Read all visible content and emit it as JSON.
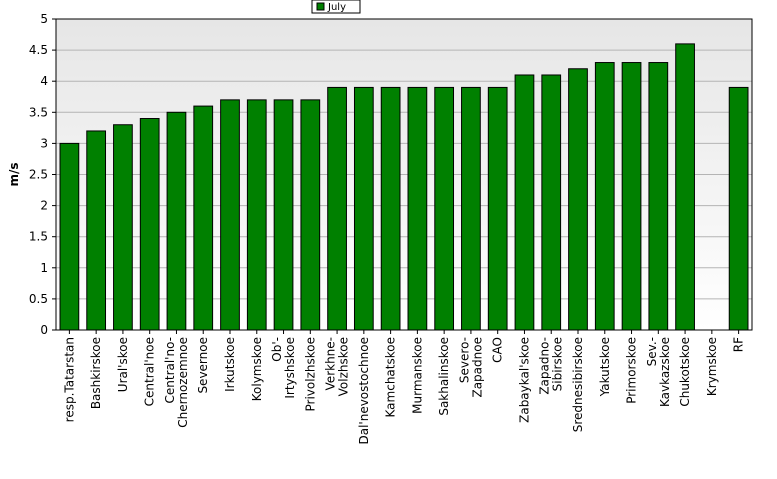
{
  "chart_data": {
    "type": "bar",
    "ylabel": "m/s",
    "xlabel": "",
    "ylim": [
      0,
      5
    ],
    "yticks": [
      "0",
      "0.5",
      "1",
      "1.5",
      "2",
      "2.5",
      "3",
      "3.5",
      "4",
      "4.5",
      "5"
    ],
    "grid": true,
    "legend_position": "top-center",
    "categories": [
      [
        "resp.Tatarstan"
      ],
      [
        "Bashkirskoe"
      ],
      [
        "Ural'skoe"
      ],
      [
        "Central'noe"
      ],
      [
        "Central'no-",
        "Chernozemnoe"
      ],
      [
        "Severnoe"
      ],
      [
        "Irkutskoe"
      ],
      [
        "Kolymskoe"
      ],
      [
        "Ob'-",
        "Irtyshskoe"
      ],
      [
        "Privolzhskoe"
      ],
      [
        "Verkhne-",
        "Volzhskoe"
      ],
      [
        "Dal'nevostochnoe"
      ],
      [
        "Kamchatskoe"
      ],
      [
        "Murmanskoe"
      ],
      [
        "Sakhalinskoe"
      ],
      [
        "Severo-",
        "Zapadnoe"
      ],
      [
        "CAO"
      ],
      [
        "Zabaykal'skoe"
      ],
      [
        "Zapadno-",
        "Sibirskoe"
      ],
      [
        "Srednesibirskoe"
      ],
      [
        "Yakutskoe"
      ],
      [
        "Primorskoe"
      ],
      [
        "Sev.-",
        "Kavkazskoe"
      ],
      [
        "Chukotskoe"
      ],
      [
        "Krymskoe"
      ],
      [
        "RF"
      ]
    ],
    "series": [
      {
        "name": "July",
        "color": "#008000",
        "values": [
          3.0,
          3.2,
          3.3,
          3.4,
          3.5,
          3.6,
          3.7,
          3.7,
          3.7,
          3.7,
          3.9,
          3.9,
          3.9,
          3.9,
          3.9,
          3.9,
          3.9,
          4.1,
          4.1,
          4.2,
          4.3,
          4.3,
          4.3,
          4.6,
          null,
          3.9
        ]
      }
    ]
  }
}
